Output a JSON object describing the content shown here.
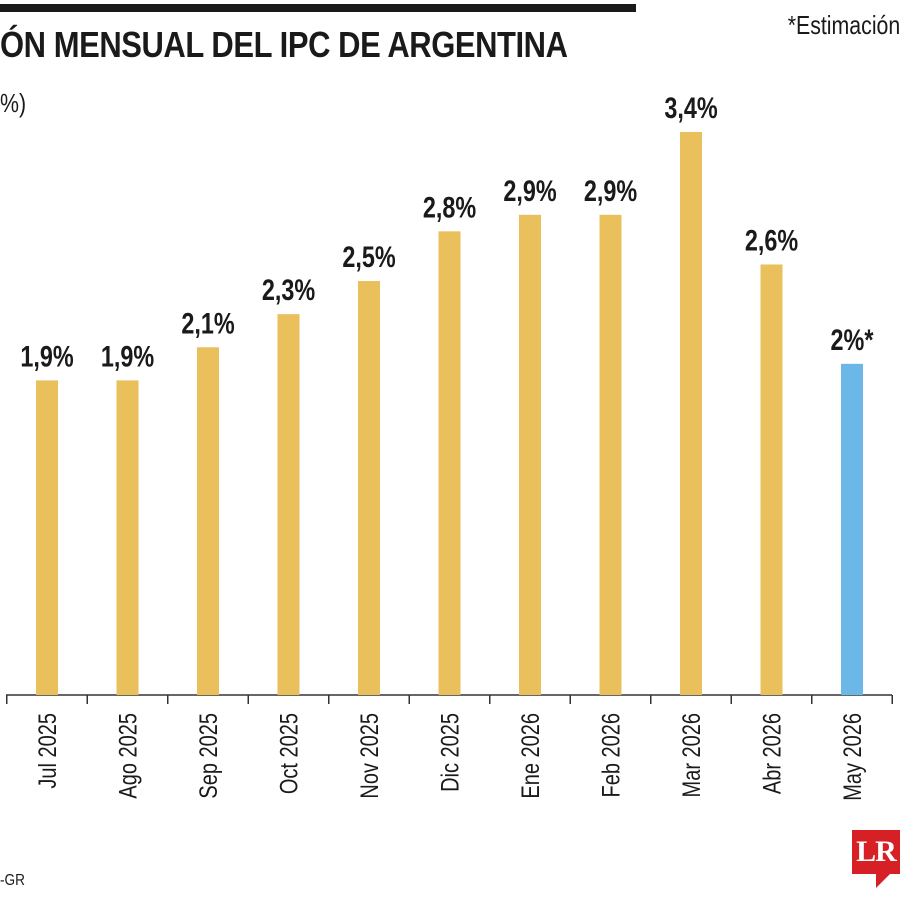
{
  "header": {
    "title": "ÓN MENSUAL DEL IPC DE ARGENTINA",
    "note": "*Estimación",
    "unit": "%)",
    "source": "-GR",
    "logo": "LR"
  },
  "colors": {
    "actual": "#e9c05c",
    "estimate": "#6bb7e8",
    "axis": "#333333"
  },
  "chart_data": {
    "type": "bar",
    "categories": [
      "Jul 2025",
      "Ago 2025",
      "Sep 2025",
      "Oct 2025",
      "Nov 2025",
      "Dic 2025",
      "Ene 2026",
      "Feb 2026",
      "Mar 2026",
      "Abr 2026",
      "May 2026"
    ],
    "values": [
      1.9,
      1.9,
      2.1,
      2.3,
      2.5,
      2.8,
      2.9,
      2.9,
      3.4,
      2.6,
      2.0
    ],
    "labels": [
      "1,9%",
      "1,9%",
      "2,1%",
      "2,3%",
      "2,5%",
      "2,8%",
      "2,9%",
      "2,9%",
      "3,4%",
      "2,6%",
      "2%*"
    ],
    "estimated": [
      false,
      false,
      false,
      false,
      false,
      false,
      false,
      false,
      false,
      false,
      true
    ],
    "ylim": [
      0,
      3.4
    ],
    "grid": false
  }
}
